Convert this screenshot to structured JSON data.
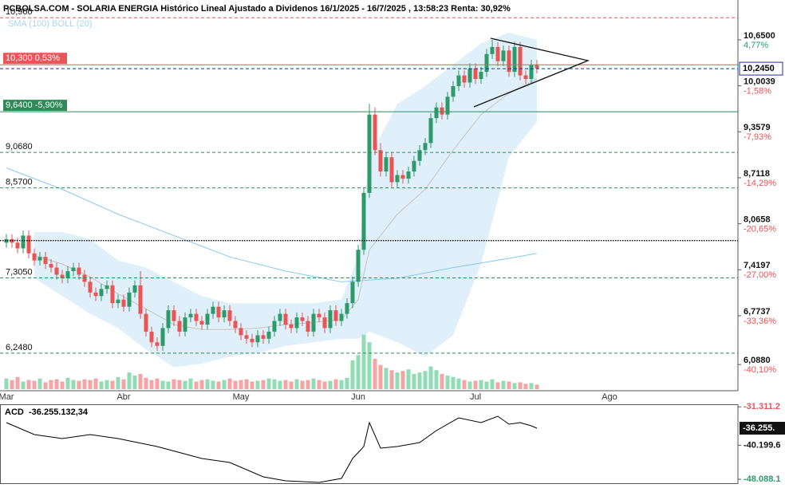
{
  "chart_data": {
    "type": "candlestick",
    "title": "PCBOLSA.COM - SOLARIA ENERGIA Histórico Lineal Ajustado a Dividenos 16/1/2025 - 16/7/2025 , 13:58:23 Renta: 30,92%",
    "indicators_label": "SMA (100) BOLL (20)",
    "up_color": "#2e9a6a",
    "down_color": "#ea5455",
    "volume_up_color": "#8fdcb5",
    "volume_down_color": "#f5a3a5",
    "grid": false,
    "categories": [
      "Mar",
      null,
      null,
      null,
      null,
      null,
      null,
      null,
      null,
      null,
      null,
      null,
      null,
      null,
      null,
      null,
      null,
      null,
      null,
      null,
      null,
      "Abr",
      null,
      null,
      null,
      null,
      null,
      null,
      null,
      null,
      null,
      null,
      null,
      null,
      null,
      null,
      null,
      null,
      null,
      null,
      null,
      null,
      "May",
      null,
      null,
      null,
      null,
      null,
      null,
      null,
      null,
      null,
      null,
      null,
      null,
      null,
      null,
      null,
      null,
      null,
      null,
      null,
      null,
      "Jun",
      null,
      null,
      null,
      null,
      null,
      null,
      null,
      null,
      null,
      null,
      null,
      null,
      null,
      null,
      null,
      null,
      null,
      null,
      null,
      null,
      "Jul",
      null,
      null,
      null,
      null,
      null,
      null,
      null,
      null,
      null,
      null,
      null,
      null,
      null,
      null,
      null,
      null,
      null,
      null,
      null,
      null,
      null,
      null,
      null,
      "Ago",
      null,
      null,
      null
    ],
    "open": [
      7.8,
      7.85,
      7.8,
      7.72,
      7.9,
      7.65,
      7.55,
      7.6,
      7.5,
      7.45,
      7.35,
      7.3,
      7.4,
      7.45,
      7.35,
      7.25,
      7.1,
      7.05,
      7.15,
      7.2,
      6.95,
      7.0,
      6.9,
      7.1,
      7.2,
      6.8,
      6.55,
      6.4,
      6.35,
      6.6,
      6.85,
      6.7,
      6.55,
      6.75,
      6.8,
      6.7,
      6.65,
      6.8,
      6.9,
      6.75,
      6.85,
      6.7,
      6.6,
      6.5,
      6.45,
      6.4,
      6.5,
      6.45,
      6.55,
      6.7,
      6.8,
      6.65,
      6.6,
      6.75,
      6.7,
      6.55,
      6.8,
      6.75,
      6.6,
      6.85,
      6.7,
      6.8,
      6.95,
      7.25,
      7.7,
      8.5,
      9.6,
      9.1,
      8.8,
      9.0,
      8.65,
      8.75,
      8.7,
      8.8,
      8.95,
      9.1,
      9.2,
      9.55,
      9.7,
      9.6,
      9.85,
      10.0,
      10.15,
      10.05,
      10.25,
      10.1,
      10.2,
      10.45,
      10.55,
      10.35,
      10.5,
      10.2,
      10.55,
      10.15,
      10.1,
      10.3,
      null,
      null,
      null,
      null,
      null,
      null,
      null,
      null,
      null,
      null,
      null,
      null,
      null,
      null,
      null,
      null
    ],
    "high": [
      7.92,
      7.92,
      7.87,
      7.97,
      7.97,
      7.72,
      7.67,
      7.67,
      7.57,
      7.52,
      7.42,
      7.47,
      7.52,
      7.52,
      7.42,
      7.32,
      7.17,
      7.22,
      7.27,
      7.27,
      7.07,
      7.07,
      7.17,
      7.27,
      7.4,
      6.87,
      6.62,
      6.47,
      6.67,
      6.92,
      6.92,
      6.77,
      6.82,
      6.87,
      6.87,
      6.77,
      6.87,
      6.97,
      6.97,
      6.92,
      6.92,
      6.77,
      6.67,
      6.57,
      6.52,
      6.57,
      6.57,
      6.62,
      6.77,
      6.87,
      6.87,
      6.72,
      6.82,
      6.82,
      6.77,
      6.87,
      6.87,
      6.82,
      6.92,
      6.92,
      6.87,
      7.02,
      7.32,
      7.77,
      8.57,
      9.75,
      9.7,
      9.2,
      9.07,
      9.07,
      8.82,
      8.82,
      8.87,
      9.02,
      9.17,
      9.27,
      9.62,
      9.77,
      9.77,
      9.92,
      10.07,
      10.22,
      10.22,
      10.32,
      10.32,
      10.27,
      10.52,
      10.65,
      10.62,
      10.57,
      10.57,
      10.62,
      10.62,
      10.22,
      10.37,
      10.37,
      null,
      null,
      null,
      null,
      null,
      null,
      null,
      null,
      null,
      null,
      null,
      null,
      null,
      null,
      null,
      null
    ],
    "low": [
      7.73,
      7.73,
      7.65,
      7.65,
      7.58,
      7.48,
      7.48,
      7.43,
      7.38,
      7.28,
      7.23,
      7.23,
      7.33,
      7.28,
      7.18,
      7.03,
      6.98,
      6.98,
      7.08,
      6.88,
      6.88,
      6.83,
      6.83,
      7.03,
      6.73,
      6.48,
      6.33,
      6.28,
      6.28,
      6.53,
      6.63,
      6.48,
      6.48,
      6.68,
      6.63,
      6.58,
      6.58,
      6.73,
      6.68,
      6.68,
      6.63,
      6.53,
      6.43,
      6.38,
      6.33,
      6.33,
      6.38,
      6.38,
      6.48,
      6.63,
      6.58,
      6.53,
      6.53,
      6.63,
      6.48,
      6.48,
      6.68,
      6.53,
      6.53,
      6.63,
      6.63,
      6.73,
      6.88,
      7.18,
      7.63,
      8.43,
      9.03,
      8.73,
      8.73,
      8.58,
      8.58,
      8.63,
      8.63,
      8.73,
      8.88,
      9.03,
      9.13,
      9.48,
      9.53,
      9.53,
      9.78,
      9.93,
      9.98,
      9.98,
      10.03,
      10.03,
      10.13,
      10.38,
      10.28,
      10.28,
      10.13,
      10.13,
      10.08,
      10.03,
      10.03,
      10.18,
      null,
      null,
      null,
      null,
      null,
      null,
      null,
      null,
      null,
      null,
      null,
      null,
      null,
      null,
      null,
      null
    ],
    "close": [
      7.85,
      7.8,
      7.72,
      7.9,
      7.65,
      7.55,
      7.6,
      7.5,
      7.45,
      7.35,
      7.3,
      7.4,
      7.45,
      7.35,
      7.25,
      7.1,
      7.05,
      7.15,
      7.2,
      6.95,
      7.0,
      6.9,
      7.1,
      7.2,
      6.8,
      6.55,
      6.4,
      6.35,
      6.6,
      6.85,
      6.7,
      6.55,
      6.75,
      6.8,
      6.7,
      6.65,
      6.8,
      6.9,
      6.75,
      6.85,
      6.7,
      6.6,
      6.5,
      6.45,
      6.4,
      6.5,
      6.45,
      6.55,
      6.7,
      6.8,
      6.65,
      6.6,
      6.75,
      6.7,
      6.55,
      6.8,
      6.75,
      6.6,
      6.85,
      6.7,
      6.8,
      6.95,
      7.25,
      7.7,
      8.5,
      9.6,
      9.1,
      8.8,
      9.0,
      8.65,
      8.75,
      8.7,
      8.8,
      8.95,
      9.1,
      9.2,
      9.55,
      9.7,
      9.6,
      9.85,
      10.0,
      10.15,
      10.05,
      10.25,
      10.1,
      10.2,
      10.45,
      10.55,
      10.35,
      10.5,
      10.2,
      10.55,
      10.15,
      10.1,
      10.3,
      10.25,
      null,
      null,
      null,
      null,
      null,
      null,
      null,
      null,
      null,
      null,
      null,
      null,
      null,
      null,
      null,
      null
    ],
    "volume": [
      14,
      12,
      16,
      10,
      12,
      11,
      14,
      9,
      12,
      13,
      10,
      15,
      12,
      11,
      13,
      12,
      14,
      10,
      12,
      11,
      16,
      13,
      22,
      18,
      20,
      15,
      12,
      14,
      11,
      10,
      13,
      12,
      11,
      14,
      10,
      12,
      13,
      11,
      10,
      12,
      14,
      11,
      12,
      13,
      10,
      11,
      12,
      14,
      13,
      11,
      12,
      10,
      13,
      11,
      12,
      14,
      12,
      10,
      11,
      13,
      12,
      15,
      38,
      45,
      72,
      62,
      40,
      32,
      28,
      25,
      22,
      24,
      26,
      20,
      22,
      24,
      30,
      25,
      20,
      18,
      16,
      14,
      12,
      10,
      11,
      12,
      10,
      13,
      9,
      11,
      10,
      8,
      9,
      7,
      8,
      6,
      null,
      null,
      null,
      null,
      null,
      null,
      null,
      null,
      null,
      null,
      null,
      null,
      null,
      null,
      null,
      null
    ],
    "bollinger": {
      "color": "#d4ebfa",
      "mid_color": "#c4c4c4",
      "x": [
        5,
        10,
        15,
        20,
        25,
        30,
        35,
        40,
        45,
        50,
        55,
        60,
        63,
        65,
        70,
        75,
        80,
        85,
        90,
        95
      ],
      "upper": [
        7.95,
        7.95,
        7.85,
        7.55,
        7.45,
        7.25,
        7.05,
        6.95,
        6.95,
        6.95,
        6.95,
        7.0,
        7.6,
        9.0,
        9.75,
        10.0,
        10.3,
        10.6,
        10.75,
        10.65
      ],
      "mid": [
        7.62,
        7.5,
        7.32,
        7.08,
        6.87,
        6.65,
        6.58,
        6.58,
        6.6,
        6.65,
        6.68,
        6.72,
        7.0,
        7.7,
        8.2,
        8.55,
        9.1,
        9.6,
        9.9,
        10.1
      ],
      "lower": [
        7.3,
        7.05,
        6.8,
        6.6,
        6.3,
        6.05,
        6.1,
        6.2,
        6.25,
        6.35,
        6.4,
        6.45,
        6.45,
        6.55,
        6.4,
        6.2,
        6.5,
        7.5,
        9.0,
        9.5
      ]
    },
    "sma": {
      "color": "#8cc8ef",
      "x": [
        0,
        10,
        20,
        30,
        40,
        50,
        60,
        70,
        80,
        90,
        95
      ],
      "values": [
        8.85,
        8.55,
        8.2,
        7.9,
        7.6,
        7.4,
        7.25,
        7.3,
        7.45,
        7.58,
        7.65
      ]
    },
    "ylim": [
      5.72,
      11.12
    ],
    "yticks": [
      {
        "value": 10.65,
        "label": "10,6500"
      },
      {
        "value": 10.0039,
        "label": "10,0039"
      },
      {
        "value": 9.3579,
        "label": "9,3579"
      },
      {
        "value": 8.7118,
        "label": "8,7118"
      },
      {
        "value": 8.0658,
        "label": "8,0658"
      },
      {
        "value": 7.4197,
        "label": "7,4197"
      },
      {
        "value": 6.7737,
        "label": "6,7737"
      },
      {
        "value": 6.088,
        "label": "6,0880"
      }
    ],
    "ytick_changes": [
      "4,77%",
      "-1,58%",
      "-7,93%",
      "-14,29%",
      "-20,65%",
      "-27,00%",
      "-33,36%",
      "-40,10%"
    ],
    "levels": [
      {
        "value": 10.96,
        "label": "10,960",
        "color": "#e8565a",
        "dash": "dashed"
      },
      {
        "value": 10.3,
        "label": "10,300 0,53%",
        "color": "#e8565a",
        "dash": "solid",
        "boxed": true
      },
      {
        "value": 10.245,
        "label": "10,2450",
        "color": "#1f2fa0",
        "dash": "dashed",
        "boxed": true,
        "side": "right"
      },
      {
        "value": 9.64,
        "label": "9,6400 -5,90%",
        "color": "#2e8b57",
        "dash": "solid",
        "boxed": true
      },
      {
        "value": 9.068,
        "label": "9,0680",
        "color": "#2e8b57",
        "dash": "dashed"
      },
      {
        "value": 8.57,
        "label": "8,5700",
        "color": "#2e8b57",
        "dash": "dashed"
      },
      {
        "value": 7.83,
        "color": "#000000",
        "dash": "dotted"
      },
      {
        "value": 7.305,
        "label": "7,3050",
        "color": "#2e8b57",
        "dash": "dashed"
      },
      {
        "value": 6.248,
        "label": "6,2480",
        "color": "#2e8b57",
        "dash": "dashed"
      }
    ],
    "acd": {
      "name": "ACD",
      "value_label": "-36.255.132,34",
      "last_label": "-36.255.",
      "color": "#000000",
      "x": [
        0,
        5,
        10,
        15,
        20,
        27,
        35,
        40,
        46,
        50,
        56,
        60,
        62,
        64,
        65,
        67,
        70,
        74,
        77,
        81,
        85,
        88,
        90,
        92,
        94,
        95
      ],
      "values": [
        -34960000,
        -37730000,
        -38660000,
        -37730000,
        -38660000,
        -40500000,
        -43270000,
        -44200000,
        -47520000,
        -48450000,
        -48820000,
        -47890000,
        -43270000,
        -40500000,
        -34960000,
        -40870000,
        -40500000,
        -39580000,
        -36810000,
        -33860000,
        -34960000,
        -33490000,
        -35330000,
        -34960000,
        -35700000,
        -36255132.34
      ],
      "ylim": [
        -49000000,
        -30900000
      ],
      "yticks": [
        {
          "value": -31311200,
          "label": "-31.311.2"
        },
        {
          "value": -40199600,
          "label": "-40.199.6"
        },
        {
          "value": -48088100,
          "label": "-48.088.1"
        }
      ]
    }
  }
}
